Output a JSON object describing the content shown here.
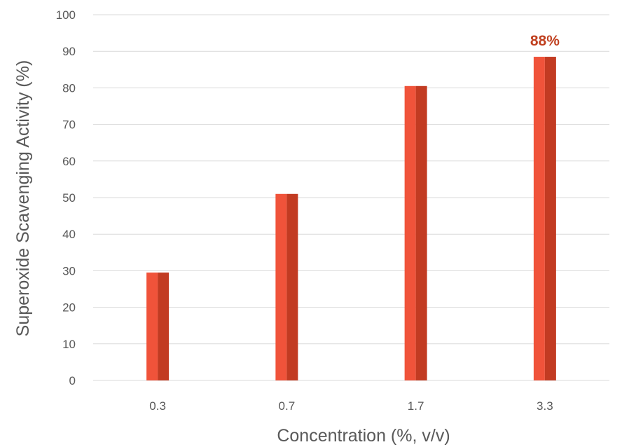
{
  "chart_data": {
    "type": "bar",
    "categories": [
      "0.3",
      "0.7",
      "1.7",
      "3.3"
    ],
    "values": [
      29.5,
      51,
      80.5,
      88.5
    ],
    "data_labels": [
      "",
      "",
      "",
      "88%"
    ],
    "xlabel": "Concentration (%, v/v)",
    "ylabel": "Superoxide Scavenging Activity (%)",
    "ylim": [
      0,
      100
    ],
    "yticks": [
      0,
      10,
      20,
      30,
      40,
      50,
      60,
      70,
      80,
      90,
      100
    ],
    "grid": true,
    "colors": {
      "bar_light": "#f0533a",
      "bar_dark": "#c23b22",
      "label": "#c0401f"
    }
  }
}
